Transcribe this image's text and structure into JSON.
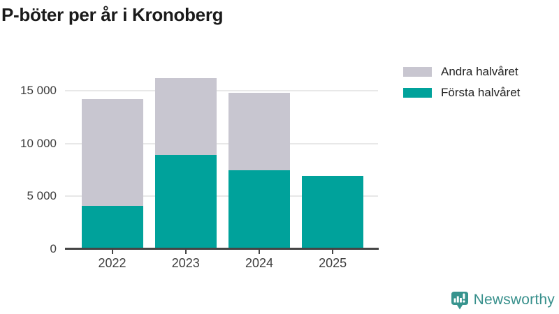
{
  "title": "P-böter per år i Kronoberg",
  "legend": [
    {
      "label": "Andra halvåret",
      "series": "andra"
    },
    {
      "label": "Första halvåret",
      "series": "forsta"
    }
  ],
  "branding": {
    "name": "Newsworthy"
  },
  "colors": {
    "teal": "#00a29b",
    "gray": "#c8c6d0",
    "axis": "#454545",
    "grid": "#e8e8e8",
    "tick_text": "#3d3d3d",
    "title_text": "#1a1a1a",
    "brand_teal": "#38908c"
  },
  "chart_data": {
    "type": "bar",
    "stacked": true,
    "title": "P-böter per år i Kronoberg",
    "categories": [
      "2022",
      "2023",
      "2024",
      "2025"
    ],
    "series": [
      {
        "name": "Första halvåret",
        "key": "forsta",
        "color": "#00a29b",
        "values": [
          4100,
          8900,
          7500,
          6950
        ]
      },
      {
        "name": "Andra halvåret",
        "key": "andra",
        "color": "#c8c6d0",
        "values": [
          10100,
          7300,
          7350,
          0
        ]
      }
    ],
    "xlabel": "",
    "ylabel": "",
    "ylim": [
      0,
      17000
    ],
    "yticks": [
      {
        "value": 0,
        "label": "0"
      },
      {
        "value": 5000,
        "label": "5 000"
      },
      {
        "value": 10000,
        "label": "10 000"
      },
      {
        "value": 15000,
        "label": "15 000"
      }
    ],
    "grid": "horizontal",
    "legend_position": "top-right"
  }
}
